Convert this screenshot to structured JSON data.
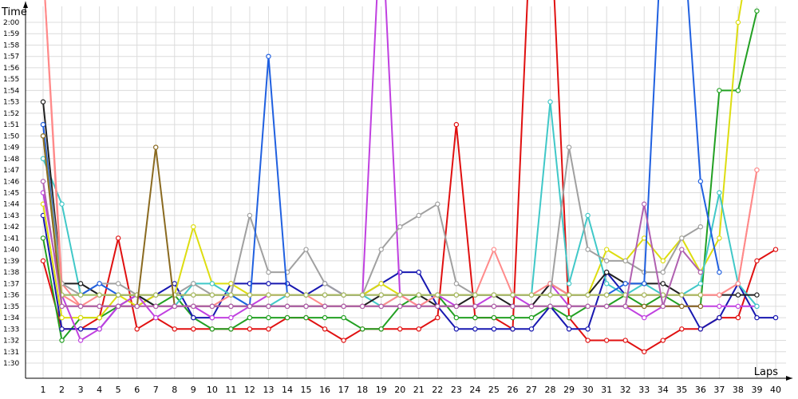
{
  "chart_data": {
    "type": "line",
    "ylabel": "Time",
    "xlabel": "Laps",
    "grid": true,
    "legend": "none",
    "x": [
      1,
      2,
      3,
      4,
      5,
      6,
      7,
      8,
      9,
      10,
      11,
      12,
      13,
      14,
      15,
      16,
      17,
      18,
      19,
      20,
      21,
      22,
      23,
      24,
      25,
      26,
      27,
      28,
      29,
      30,
      31,
      32,
      33,
      34,
      35,
      36,
      37,
      38,
      39,
      40
    ],
    "xlim": [
      0,
      40.5
    ],
    "y_unit": "seconds",
    "ylim": [
      88,
      126
    ],
    "y_ticks": [
      "1:30",
      "1:31",
      "1:32",
      "1:33",
      "1:34",
      "1:35",
      "1:36",
      "1:37",
      "1:38",
      "1:39",
      "1:40",
      "1:41",
      "1:42",
      "1:43",
      "1:44",
      "1:45",
      "1:46",
      "1:47",
      "1:48",
      "1:49",
      "1:50",
      "1:51",
      "1:52",
      "1:53",
      "1:54",
      "1:55",
      "1:56",
      "1:57",
      "1:58",
      "1:59",
      "2:00"
    ],
    "y_tick_values": [
      90,
      91,
      92,
      93,
      94,
      95,
      96,
      97,
      98,
      99,
      100,
      101,
      102,
      103,
      104,
      105,
      106,
      107,
      108,
      109,
      110,
      111,
      112,
      113,
      114,
      115,
      116,
      117,
      118,
      119,
      120
    ],
    "series": [
      {
        "color": "#e01010",
        "values": [
          99,
          93,
          93,
          94,
          101,
          93,
          94,
          93,
          93,
          93,
          93,
          93,
          93,
          94,
          94,
          93,
          92,
          93,
          93,
          93,
          93,
          94,
          111,
          94,
          94,
          93,
          130,
          130,
          94,
          92,
          92,
          92,
          91,
          92,
          93,
          93,
          94,
          94,
          99,
          100
        ]
      },
      {
        "color": "#22a022",
        "values": [
          101,
          92,
          94,
          94,
          95,
          96,
          95,
          96,
          94,
          93,
          93,
          94,
          94,
          94,
          94,
          94,
          94,
          93,
          93,
          95,
          96,
          96,
          94,
          94,
          94,
          94,
          94,
          95,
          94,
          95,
          95,
          96,
          95,
          96,
          95,
          95,
          114,
          114,
          121,
          null
        ]
      },
      {
        "color": "#1818b0",
        "values": [
          103,
          93,
          93,
          93,
          95,
          95,
          96,
          97,
          94,
          94,
          97,
          97,
          97,
          97,
          96,
          97,
          96,
          96,
          97,
          98,
          98,
          95,
          93,
          93,
          93,
          93,
          93,
          95,
          93,
          93,
          98,
          96,
          96,
          96,
          96,
          93,
          94,
          97,
          94,
          94
        ]
      },
      {
        "color": "#dddd10",
        "values": [
          104,
          94,
          94,
          94,
          96,
          95,
          96,
          96,
          102,
          97,
          97,
          96,
          96,
          96,
          96,
          96,
          96,
          96,
          97,
          96,
          96,
          96,
          96,
          96,
          96,
          96,
          96,
          96,
          96,
          96,
          100,
          99,
          101,
          99,
          101,
          98,
          101,
          120,
          130,
          null
        ]
      },
      {
        "color": "#c040e0",
        "values": [
          105,
          96,
          92,
          93,
          95,
          96,
          94,
          95,
          95,
          94,
          94,
          95,
          96,
          96,
          96,
          96,
          96,
          96,
          130,
          96,
          95,
          96,
          95,
          95,
          96,
          96,
          95,
          97,
          95,
          95,
          95,
          95,
          94,
          95,
          95,
          95,
          95,
          95,
          95,
          null
        ]
      },
      {
        "color": "#40c8c8",
        "values": [
          108,
          104,
          96,
          96,
          96,
          96,
          95,
          95,
          97,
          97,
          96,
          95,
          95,
          96,
          96,
          96,
          96,
          96,
          95,
          96,
          96,
          96,
          96,
          96,
          96,
          96,
          96,
          113,
          97,
          103,
          97,
          96,
          97,
          96,
          96,
          97,
          105,
          97,
          95,
          null
        ]
      },
      {
        "color": "#202020",
        "values": [
          113,
          97,
          97,
          96,
          96,
          96,
          95,
          95,
          95,
          95,
          95,
          95,
          95,
          95,
          95,
          95,
          95,
          95,
          96,
          96,
          96,
          95,
          95,
          96,
          96,
          95,
          95,
          97,
          96,
          96,
          98,
          97,
          97,
          97,
          96,
          96,
          96,
          96,
          96,
          null
        ]
      },
      {
        "color": "#ff8a8a",
        "values": [
          125,
          97,
          95,
          95,
          95,
          95,
          95,
          95,
          95,
          95,
          96,
          96,
          96,
          96,
          96,
          95,
          95,
          95,
          95,
          96,
          95,
          96,
          96,
          96,
          100,
          96,
          96,
          97,
          96,
          96,
          96,
          96,
          96,
          96,
          96,
          96,
          96,
          97,
          107,
          null
        ]
      },
      {
        "color": "#a0a0a0",
        "values": [
          111,
          97,
          96,
          97,
          97,
          96,
          96,
          96,
          97,
          96,
          96,
          103,
          98,
          98,
          100,
          97,
          96,
          96,
          100,
          102,
          103,
          104,
          97,
          96,
          96,
          96,
          96,
          96,
          109,
          100,
          99,
          99,
          98,
          98,
          101,
          102,
          null,
          null,
          null,
          null
        ]
      },
      {
        "color": "#2060e0",
        "values": [
          111,
          96,
          96,
          97,
          96,
          96,
          96,
          96,
          96,
          96,
          96,
          95,
          117,
          96,
          96,
          96,
          96,
          96,
          96,
          96,
          96,
          96,
          96,
          96,
          96,
          96,
          96,
          96,
          96,
          96,
          96,
          97,
          97,
          130,
          130,
          106,
          98,
          null,
          null,
          null
        ]
      },
      {
        "color": "#ff8a8a",
        "values": [
          125,
          96,
          95,
          96,
          96,
          96,
          96,
          96,
          96,
          96,
          96,
          96,
          96,
          96,
          96,
          96,
          96,
          96,
          96,
          96,
          96,
          96,
          96,
          96,
          96,
          96,
          96,
          96,
          96,
          96,
          96,
          96,
          96,
          96,
          96,
          96,
          96,
          97,
          107,
          null
        ]
      },
      {
        "color": "#a8c060",
        "values": [
          110,
          96,
          96,
          96,
          96,
          96,
          96,
          96,
          96,
          96,
          96,
          96,
          96,
          96,
          96,
          96,
          96,
          96,
          96,
          96,
          96,
          96,
          96,
          96,
          96,
          96,
          96,
          96,
          96,
          96,
          96,
          96,
          96,
          96,
          96,
          96,
          null,
          null,
          null,
          null
        ]
      },
      {
        "color": "#8a6a20",
        "values": [
          110,
          95,
          95,
          95,
          95,
          95,
          109,
          95,
          95,
          95,
          95,
          95,
          95,
          95,
          95,
          95,
          95,
          95,
          95,
          95,
          95,
          95,
          95,
          95,
          95,
          95,
          95,
          95,
          95,
          95,
          95,
          95,
          95,
          95,
          95,
          95,
          null,
          null,
          null,
          null
        ]
      },
      {
        "color": "#b060b0",
        "values": [
          106,
          95,
          95,
          95,
          95,
          95,
          95,
          95,
          95,
          95,
          95,
          95,
          95,
          95,
          95,
          95,
          95,
          95,
          95,
          95,
          95,
          95,
          95,
          95,
          95,
          95,
          95,
          95,
          95,
          95,
          95,
          95,
          104,
          95,
          100,
          98,
          null,
          null,
          null,
          null
        ]
      }
    ]
  }
}
